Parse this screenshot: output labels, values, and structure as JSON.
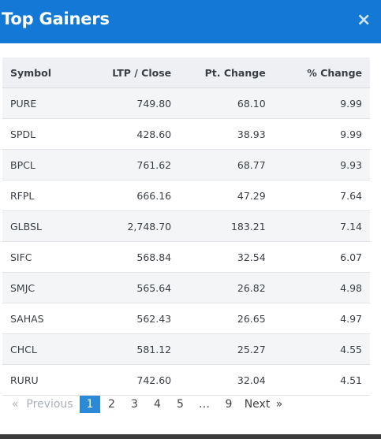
{
  "header": {
    "title": "Top Gainers",
    "close_glyph": "×"
  },
  "table": {
    "columns": [
      "Symbol",
      "LTP / Close",
      "Pt. Change",
      "% Change"
    ],
    "rows": [
      {
        "symbol": "PURE",
        "ltp": "749.80",
        "pt_change": "68.10",
        "pct_change": "9.99"
      },
      {
        "symbol": "SPDL",
        "ltp": "428.60",
        "pt_change": "38.93",
        "pct_change": "9.99"
      },
      {
        "symbol": "BPCL",
        "ltp": "761.62",
        "pt_change": "68.77",
        "pct_change": "9.93"
      },
      {
        "symbol": "RFPL",
        "ltp": "666.16",
        "pt_change": "47.29",
        "pct_change": "7.64"
      },
      {
        "symbol": "GLBSL",
        "ltp": "2,748.70",
        "pt_change": "183.21",
        "pct_change": "7.14"
      },
      {
        "symbol": "SIFC",
        "ltp": "568.84",
        "pt_change": "32.54",
        "pct_change": "6.07"
      },
      {
        "symbol": "SMJC",
        "ltp": "565.64",
        "pt_change": "26.82",
        "pct_change": "4.98"
      },
      {
        "symbol": "SAHAS",
        "ltp": "562.43",
        "pt_change": "26.65",
        "pct_change": "4.97"
      },
      {
        "symbol": "CHCL",
        "ltp": "581.12",
        "pt_change": "25.27",
        "pct_change": "4.55"
      },
      {
        "symbol": "RURU",
        "ltp": "742.60",
        "pt_change": "32.04",
        "pct_change": "4.51"
      }
    ]
  },
  "pagination": {
    "prev_arrow": "«",
    "previous_label": "Previous",
    "pages": [
      "1",
      "2",
      "3",
      "4",
      "5",
      "…",
      "9"
    ],
    "current_page": "1",
    "next_label": "Next",
    "next_arrow": "»"
  },
  "colors": {
    "header_bg": "#1479d6",
    "positive": "#2e8b2e",
    "active_page": "#2a8ad8"
  }
}
